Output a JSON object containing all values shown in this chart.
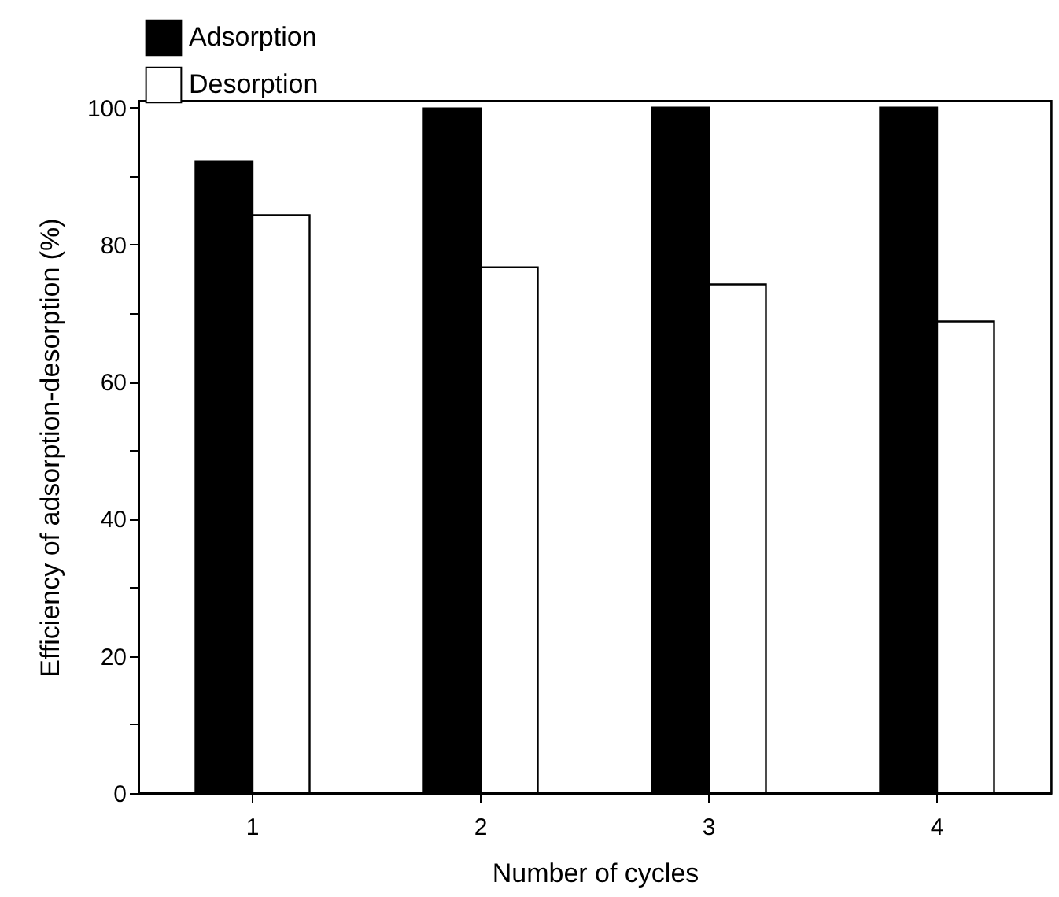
{
  "chart_data": {
    "type": "bar",
    "xlabel": "Number of cycles",
    "ylabel": "Efficiency of adsorption-desorption (%)",
    "categories": [
      "1",
      "2",
      "3",
      "4"
    ],
    "series": [
      {
        "name": "Adsorption",
        "color": "#000000",
        "values": [
          92.2,
          99.9,
          100,
          100
        ]
      },
      {
        "name": "Desorption",
        "color": "#ffffff",
        "values": [
          84.3,
          76.7,
          74.2,
          68.8
        ]
      }
    ],
    "ylim": [
      0,
      101
    ],
    "yticks": [
      0,
      {
        "value": 10,
        "label": null
      },
      20,
      {
        "value": 30,
        "label": null
      },
      40,
      {
        "value": 50,
        "label": null
      },
      60,
      {
        "value": 70,
        "label": null
      },
      80,
      {
        "value": 90,
        "label": null
      },
      100
    ],
    "legend": "top left",
    "grid": false
  }
}
